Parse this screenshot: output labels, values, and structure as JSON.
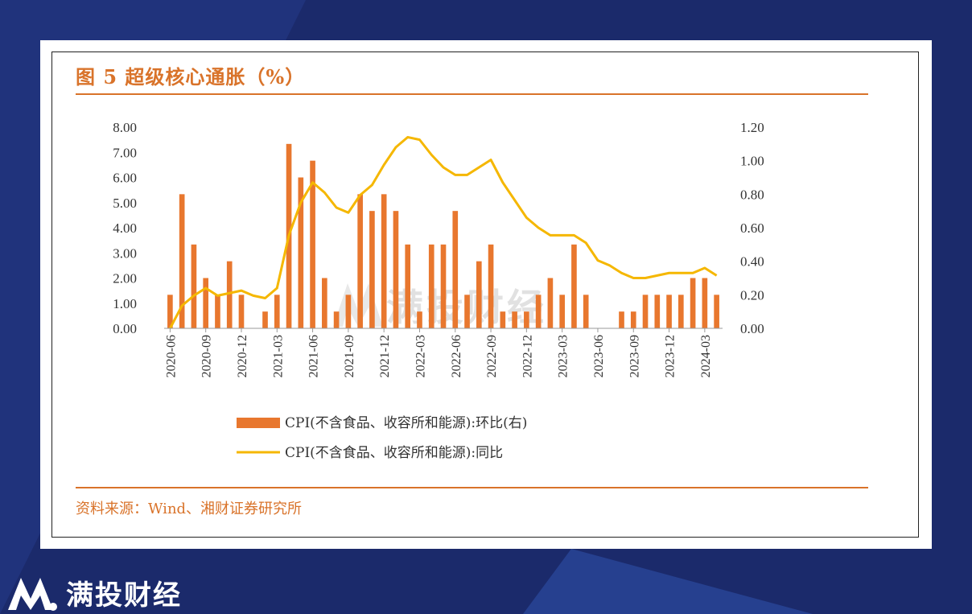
{
  "page": {
    "title": "图 5 超级核心通胀（%）",
    "source": "资料来源：Wind、湘财证券研究所",
    "watermark": "满投财经",
    "brand": "满投财经",
    "colors": {
      "bar": "#e8772e",
      "line": "#f5b700",
      "accent": "#d9732a",
      "background": "#1b2a6b"
    }
  },
  "chart_data": {
    "type": "bar",
    "categories": [
      "2020-06",
      "2020-07",
      "2020-08",
      "2020-09",
      "2020-10",
      "2020-11",
      "2020-12",
      "2021-01",
      "2021-02",
      "2021-03",
      "2021-04",
      "2021-05",
      "2021-06",
      "2021-07",
      "2021-08",
      "2021-09",
      "2021-10",
      "2021-11",
      "2021-12",
      "2022-01",
      "2022-02",
      "2022-03",
      "2022-04",
      "2022-05",
      "2022-06",
      "2022-07",
      "2022-08",
      "2022-09",
      "2022-10",
      "2022-11",
      "2022-12",
      "2022-13",
      "2023-02",
      "2023-03",
      "2023-04",
      "2023-05",
      "2023-06",
      "2023-07",
      "2023-08",
      "2023-09",
      "2023-10",
      "2023-11",
      "2023-12",
      "2024-01",
      "2024-02",
      "2024-03",
      "2024-04"
    ],
    "x_tick_labels": [
      "2020-06",
      "2020-09",
      "2020-12",
      "2021-03",
      "2021-06",
      "2021-09",
      "2021-12",
      "2022-03",
      "2022-06",
      "2022-09",
      "2022-12",
      "2023-03",
      "2023-06",
      "2023-09",
      "2023-12",
      "2024-03"
    ],
    "x_tick_indices": [
      0,
      3,
      6,
      9,
      12,
      15,
      18,
      21,
      24,
      27,
      30,
      33,
      36,
      39,
      42,
      45
    ],
    "left_axis": {
      "ylim": [
        0,
        8
      ],
      "ticks": [
        "0.00",
        "1.00",
        "2.00",
        "3.00",
        "4.00",
        "5.00",
        "6.00",
        "7.00",
        "8.00"
      ]
    },
    "right_axis": {
      "ylim": [
        0,
        1.2
      ],
      "ticks": [
        "0.00",
        "0.20",
        "0.40",
        "0.60",
        "0.80",
        "1.00",
        "1.20"
      ]
    },
    "series": [
      {
        "name": "CPI(不含食品、收容所和能源):环比(右)",
        "type": "bar",
        "axis": "right",
        "values": [
          0.2,
          0.8,
          0.5,
          0.3,
          0.2,
          0.4,
          0.2,
          0.0,
          0.1,
          0.2,
          1.1,
          0.9,
          1.0,
          0.3,
          0.1,
          0.2,
          0.8,
          0.7,
          0.8,
          0.7,
          0.5,
          0.1,
          0.5,
          0.5,
          0.7,
          0.2,
          0.4,
          0.5,
          0.1,
          0.1,
          0.1,
          0.2,
          0.3,
          0.2,
          0.5,
          0.2,
          0.0,
          0.0,
          0.1,
          0.1,
          0.2,
          0.2,
          0.2,
          0.2,
          0.3,
          0.3,
          0.2
        ]
      },
      {
        "name": "CPI(不含食品、收容所和能源):同比",
        "type": "line",
        "axis": "left",
        "values": [
          0.0,
          0.9,
          1.3,
          1.6,
          1.3,
          1.4,
          1.5,
          1.3,
          1.2,
          1.6,
          3.7,
          5.0,
          5.8,
          5.4,
          4.8,
          4.6,
          5.3,
          5.7,
          6.5,
          7.2,
          7.6,
          7.5,
          6.9,
          6.4,
          6.1,
          6.1,
          6.4,
          6.7,
          5.8,
          5.1,
          4.4,
          4.0,
          3.7,
          3.7,
          3.7,
          3.4,
          2.7,
          2.5,
          2.2,
          2.0,
          2.0,
          2.1,
          2.2,
          2.2,
          2.2,
          2.4,
          2.1
        ]
      }
    ]
  }
}
